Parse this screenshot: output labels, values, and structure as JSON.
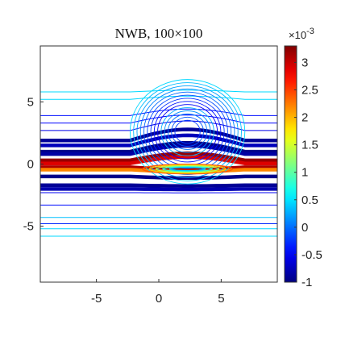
{
  "chart_data": {
    "type": "contour",
    "title": "NWB, 100×100",
    "xlabel": "",
    "ylabel": "",
    "xlim": [
      -9.5,
      9.5
    ],
    "ylim": [
      -9.5,
      9.5
    ],
    "xticks": [
      -5,
      0,
      5
    ],
    "yticks": [
      -5,
      0,
      5
    ],
    "xtick_labels": [
      "-5",
      "0",
      "5"
    ],
    "ytick_labels": [
      "-5",
      "0",
      "5"
    ],
    "colormap": "jet",
    "colorbar": {
      "range": [
        -1,
        3.3
      ],
      "ticks": [
        -1,
        -0.5,
        0,
        0.5,
        1,
        1.5,
        2,
        2.5,
        3
      ],
      "tick_labels": [
        "-1",
        "-0.5",
        "0",
        "0.5",
        "1",
        "1.5",
        "2",
        "2.5",
        "3"
      ],
      "exponent_label": "×10",
      "exponent_power": "-3"
    },
    "bands": [
      {
        "y": 5.8,
        "value": 0.45
      },
      {
        "y": 5.2,
        "value": 0.45
      },
      {
        "y": 3.9,
        "value": -0.4
      },
      {
        "y": 3.3,
        "value": -0.45
      },
      {
        "y": 2.7,
        "value": -0.55
      },
      {
        "y": 1.9,
        "value": -0.9
      },
      {
        "y": 1.5,
        "value": -0.75
      },
      {
        "y": 1.0,
        "value": -0.95
      },
      {
        "y": 0.8,
        "value": -0.85
      },
      {
        "y": 0.3,
        "value": 3.2
      },
      {
        "y": 0.05,
        "value": 2.9
      },
      {
        "y": -0.25,
        "value": 3.1
      },
      {
        "y": -0.45,
        "value": 2.2
      },
      {
        "y": -1.0,
        "value": -0.95
      },
      {
        "y": -1.7,
        "value": -0.9
      },
      {
        "y": -2.0,
        "value": -0.8
      },
      {
        "y": -2.3,
        "value": -0.5
      },
      {
        "y": -3.3,
        "value": -0.4
      },
      {
        "y": -4.3,
        "value": 0.35
      },
      {
        "y": -4.8,
        "value": -0.3
      },
      {
        "y": -5.2,
        "value": 0.45
      },
      {
        "y": -5.8,
        "value": 0.45
      }
    ],
    "bump": {
      "center_x": 2.3,
      "center_y": 2.0,
      "radius_x": 4.6,
      "radius_y": 4.2
    }
  }
}
